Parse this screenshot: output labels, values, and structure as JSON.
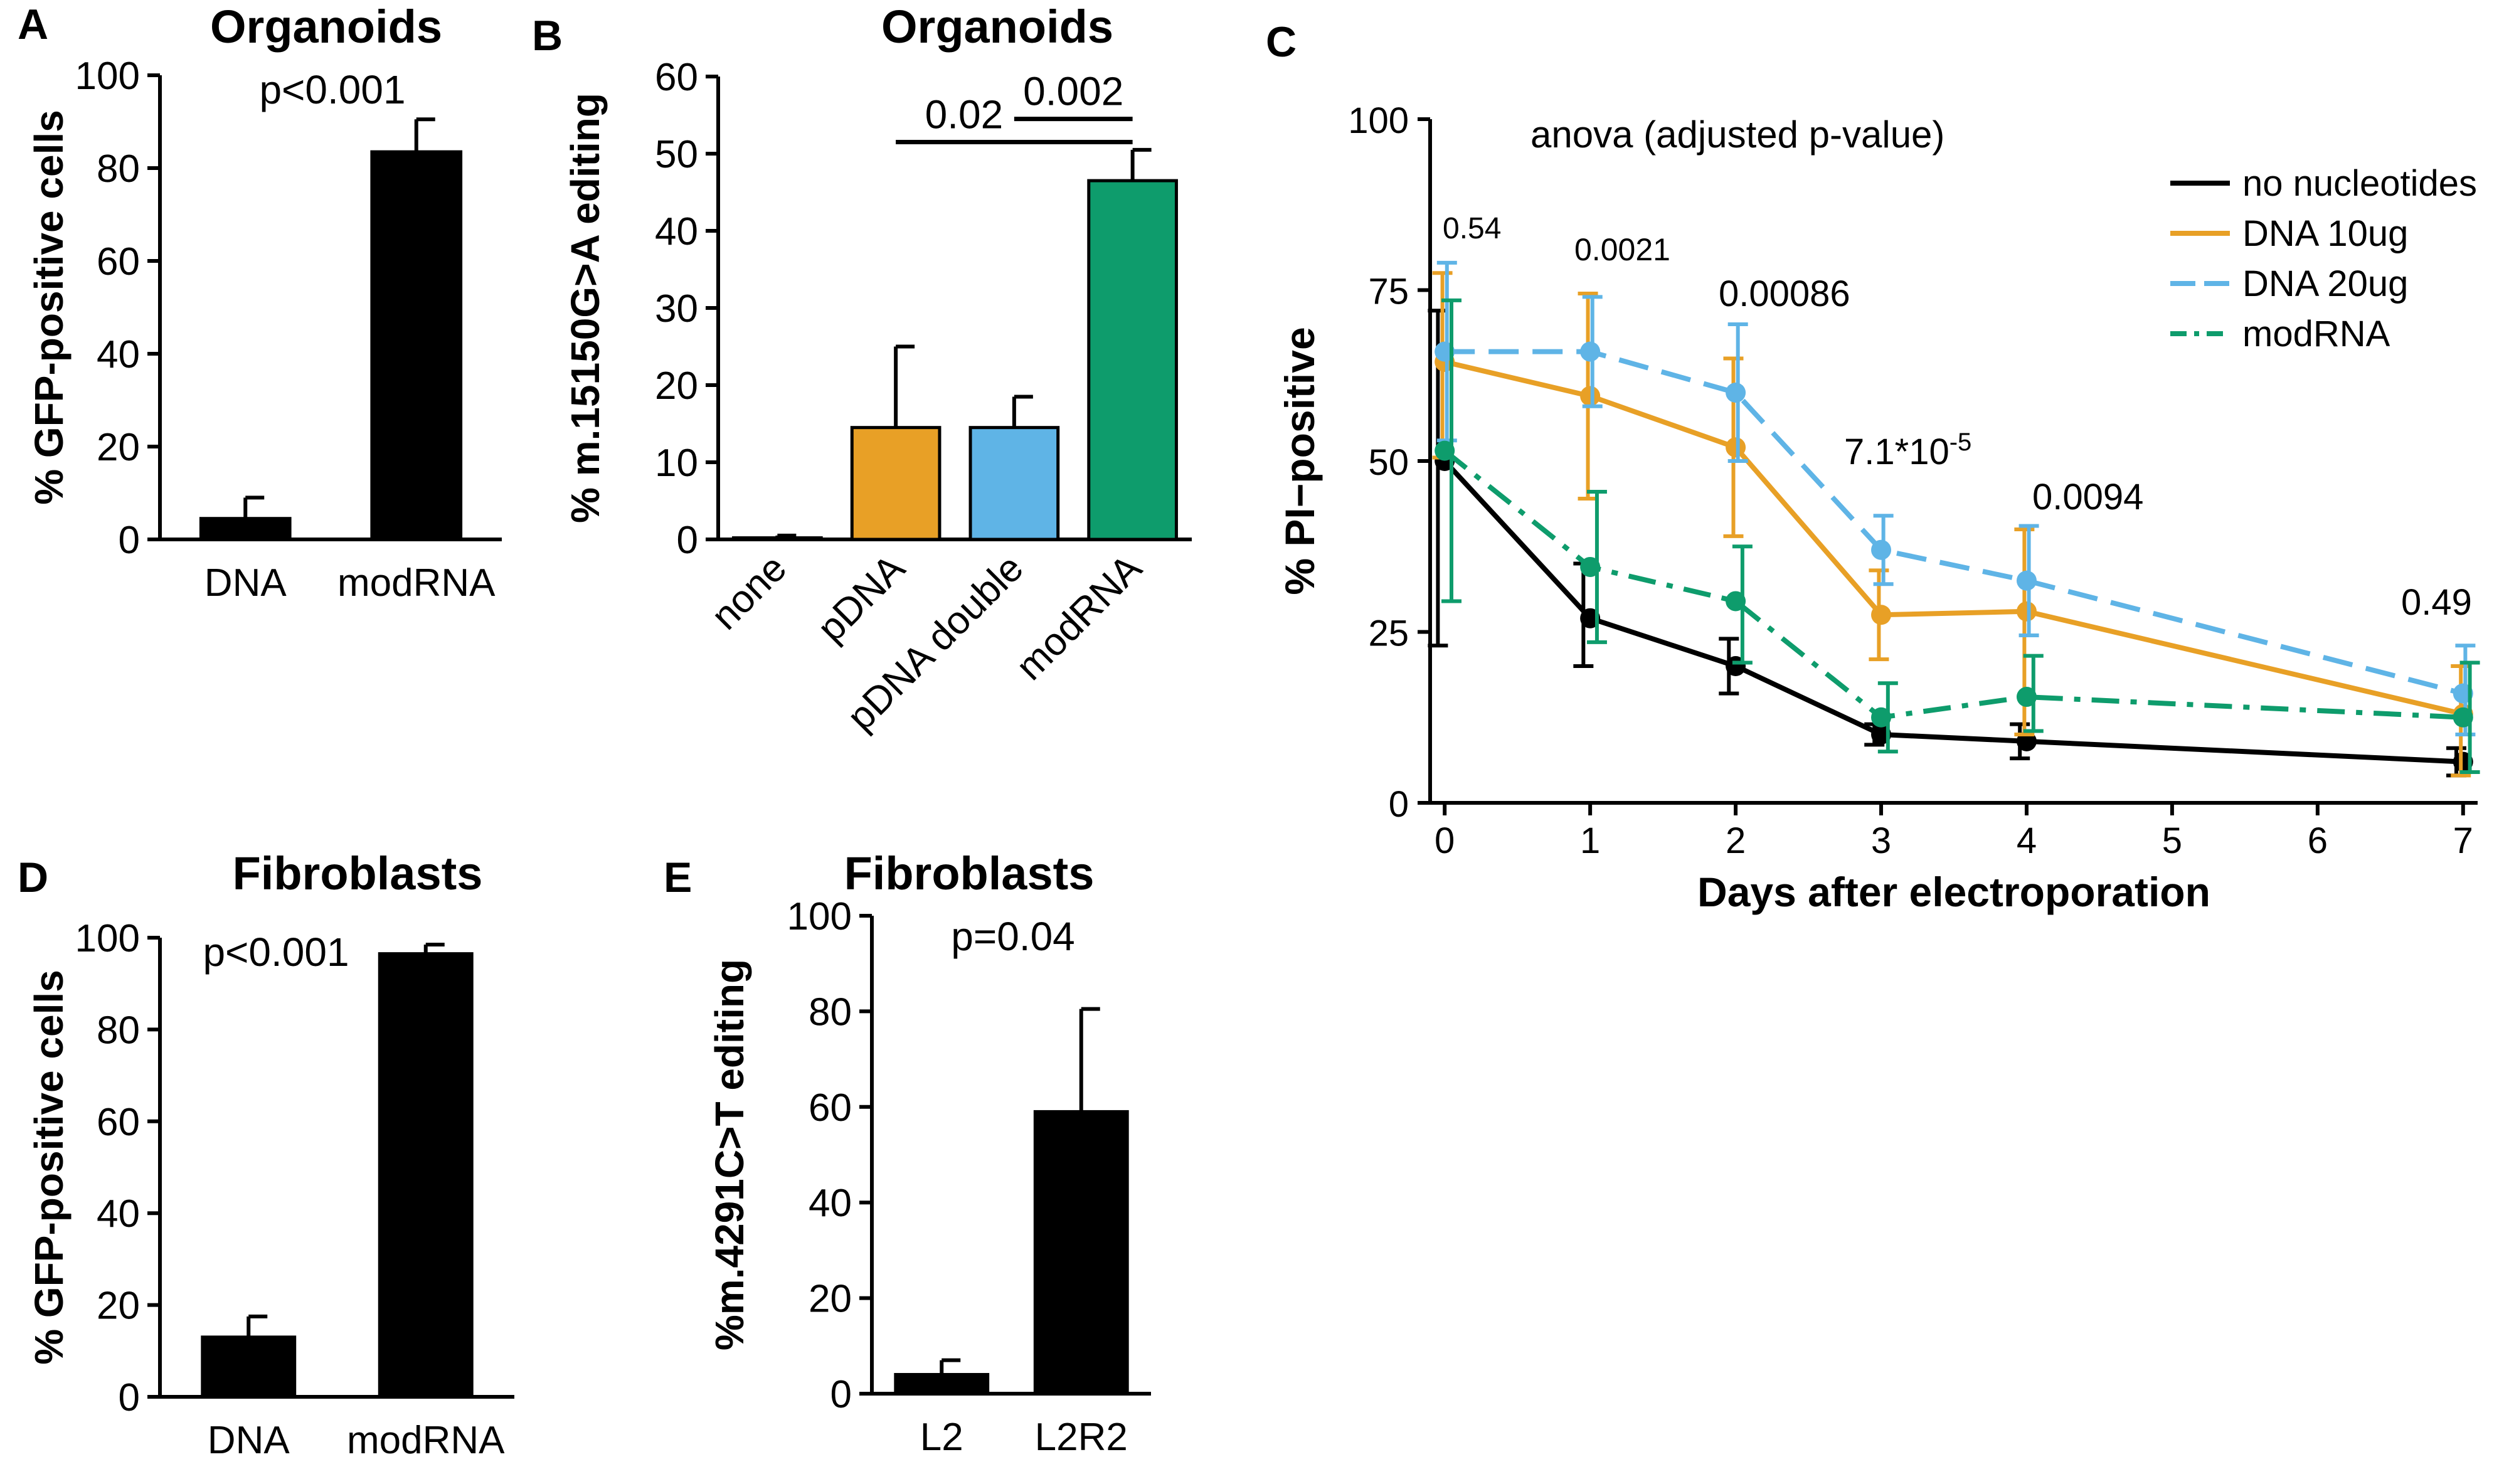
{
  "chart_data": [
    {
      "panel": "A",
      "type": "bar",
      "title": "Organoids",
      "ylabel": "% GFP-positive cells",
      "xlabel": "",
      "ylim": [
        0,
        100
      ],
      "yticks": [
        0,
        20,
        40,
        60,
        80,
        100
      ],
      "categories": [
        "DNA",
        "modRNA"
      ],
      "values": [
        4.5,
        83.5
      ],
      "errors": [
        4.5,
        7
      ],
      "colors": [
        "#000000",
        "#000000"
      ],
      "annotation": "p<0.001"
    },
    {
      "panel": "B",
      "type": "bar",
      "title": "Organoids",
      "ylabel": "% m.15150G>A editing",
      "xlabel": "",
      "ylim": [
        0,
        60
      ],
      "yticks": [
        0,
        10,
        20,
        30,
        40,
        50,
        60
      ],
      "categories": [
        "none",
        "pDNA",
        "pDNA double",
        "modRNA"
      ],
      "values": [
        0.2,
        14.5,
        14.5,
        46.5
      ],
      "errors": [
        0.3,
        10.5,
        4,
        4
      ],
      "colors": [
        "#000000",
        "#E8A026",
        "#5FB4E6",
        "#0E9C6C"
      ],
      "brackets": [
        {
          "label": "0.02",
          "from": 1,
          "to": 3,
          "y": 51.5
        },
        {
          "label": "0.002",
          "from": 2,
          "to": 3,
          "y": 54.5
        }
      ]
    },
    {
      "panel": "C",
      "type": "line",
      "title": "",
      "ylabel": "% PI−positive",
      "xlabel": "Days after electroporation",
      "ylim": [
        0,
        100
      ],
      "yticks": [
        0,
        25,
        50,
        75,
        100
      ],
      "xlim": [
        -0.1,
        7.1
      ],
      "xticks": [
        0,
        1,
        2,
        3,
        4,
        5,
        6,
        7
      ],
      "test_label": "anova (adjusted p-value)",
      "series": [
        {
          "name": "no nucleotides",
          "color": "#000000",
          "dash": "solid",
          "x": [
            0,
            1,
            2,
            3,
            4,
            7
          ],
          "y": [
            50,
            27,
            20,
            10,
            9,
            6
          ],
          "err_low": [
            27,
            7,
            4,
            1.5,
            2.5,
            2
          ],
          "err_high": [
            22,
            8,
            4,
            1.5,
            2.5,
            2
          ]
        },
        {
          "name": "DNA 10ug",
          "color": "#E8A026",
          "dash": "solid",
          "x": [
            0,
            1,
            2,
            3,
            4,
            7
          ],
          "y": [
            64.5,
            59.5,
            52,
            27.5,
            28,
            13
          ],
          "err_low": [
            14,
            15,
            13,
            6.5,
            18,
            9
          ],
          "err_high": [
            13,
            15,
            13,
            6.5,
            12,
            7
          ]
        },
        {
          "name": "DNA 20ug",
          "color": "#5FB4E6",
          "dash": "long",
          "x": [
            0,
            1,
            2,
            3,
            4,
            7
          ],
          "y": [
            66,
            66,
            60,
            37,
            32.5,
            16
          ],
          "err_low": [
            13,
            8,
            10,
            5,
            8,
            6
          ],
          "err_high": [
            13,
            8,
            10,
            5,
            8,
            7
          ]
        },
        {
          "name": "modRNA",
          "color": "#0E9C6C",
          "dash": "dashdot",
          "x": [
            0,
            1,
            2,
            3,
            4,
            7
          ],
          "y": [
            51.5,
            34.5,
            29.5,
            12.5,
            15.5,
            12.5
          ],
          "err_low": [
            22,
            11,
            9,
            5,
            5,
            8
          ],
          "err_high": [
            22,
            11,
            8,
            5,
            6,
            8
          ]
        }
      ],
      "pvalues": [
        {
          "day": 0,
          "label": "0.54"
        },
        {
          "day": 1,
          "label": "0.0021"
        },
        {
          "day": 2,
          "label": "0.00086"
        },
        {
          "day": 3,
          "label": "7.1*10",
          "sup": "-5"
        },
        {
          "day": 4,
          "label": "0.0094"
        },
        {
          "day": 7,
          "label": "0.49"
        }
      ]
    },
    {
      "panel": "D",
      "type": "bar",
      "title": "Fibroblasts",
      "ylabel": "% GFP-positive cells",
      "xlabel": "",
      "ylim": [
        0,
        100
      ],
      "yticks": [
        0,
        20,
        40,
        60,
        80,
        100
      ],
      "categories": [
        "DNA",
        "modRNA"
      ],
      "values": [
        13,
        96.5
      ],
      "errors": [
        4.5,
        2
      ],
      "colors": [
        "#000000",
        "#000000"
      ],
      "annotation": "p<0.001"
    },
    {
      "panel": "E",
      "type": "bar",
      "title": "Fibroblasts",
      "ylabel": "%m.4291C>T editing",
      "xlabel": "",
      "ylim": [
        0,
        100
      ],
      "yticks": [
        0,
        20,
        40,
        60,
        80,
        100
      ],
      "categories": [
        "L2",
        "L2R2"
      ],
      "values": [
        4,
        59
      ],
      "errors": [
        3,
        21.5
      ],
      "colors": [
        "#000000",
        "#000000"
      ],
      "annotation": "p=0.04"
    }
  ]
}
